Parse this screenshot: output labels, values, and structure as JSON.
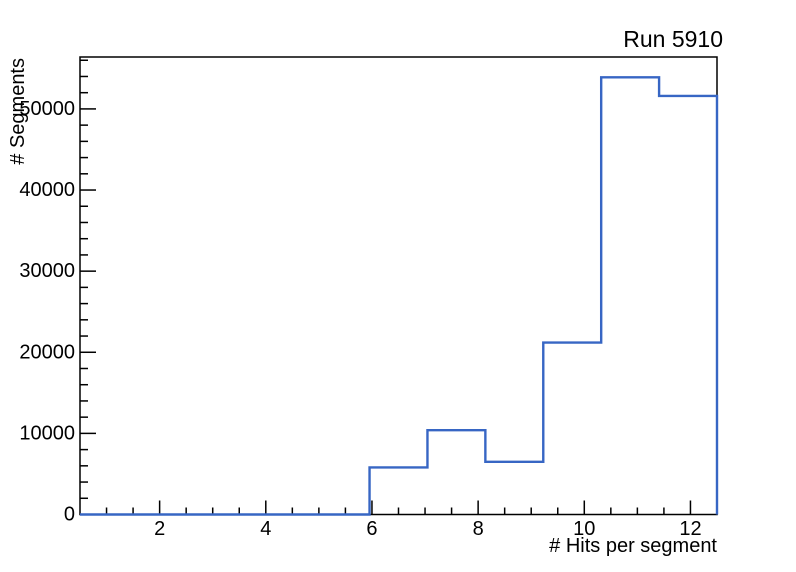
{
  "page": {
    "background": "#ffffff"
  },
  "chart_data": {
    "type": "histogram-step",
    "title": "Run 5910",
    "xlabel": "# Hits per segment",
    "ylabel": "# Segments",
    "x_range": [
      0.5,
      12.5
    ],
    "n_bins": 11,
    "bin_edges": [
      0.5,
      1.59,
      2.68,
      3.77,
      4.86,
      5.95,
      7.05,
      8.14,
      9.23,
      10.32,
      11.41,
      12.5
    ],
    "values": [
      0,
      0,
      0,
      0,
      0,
      5800,
      10400,
      6500,
      21200,
      53900,
      51600
    ],
    "ylim": [
      0,
      56400
    ],
    "x_major_ticks": [
      2,
      4,
      6,
      8,
      10,
      12
    ],
    "x_minor_step": 0.5,
    "y_major_ticks": [
      0,
      10000,
      20000,
      30000,
      40000,
      50000
    ],
    "y_minor_step": 2000,
    "grid": false,
    "legend_position": "none",
    "line_color": "#3766c4",
    "axis_color": "#000000"
  }
}
